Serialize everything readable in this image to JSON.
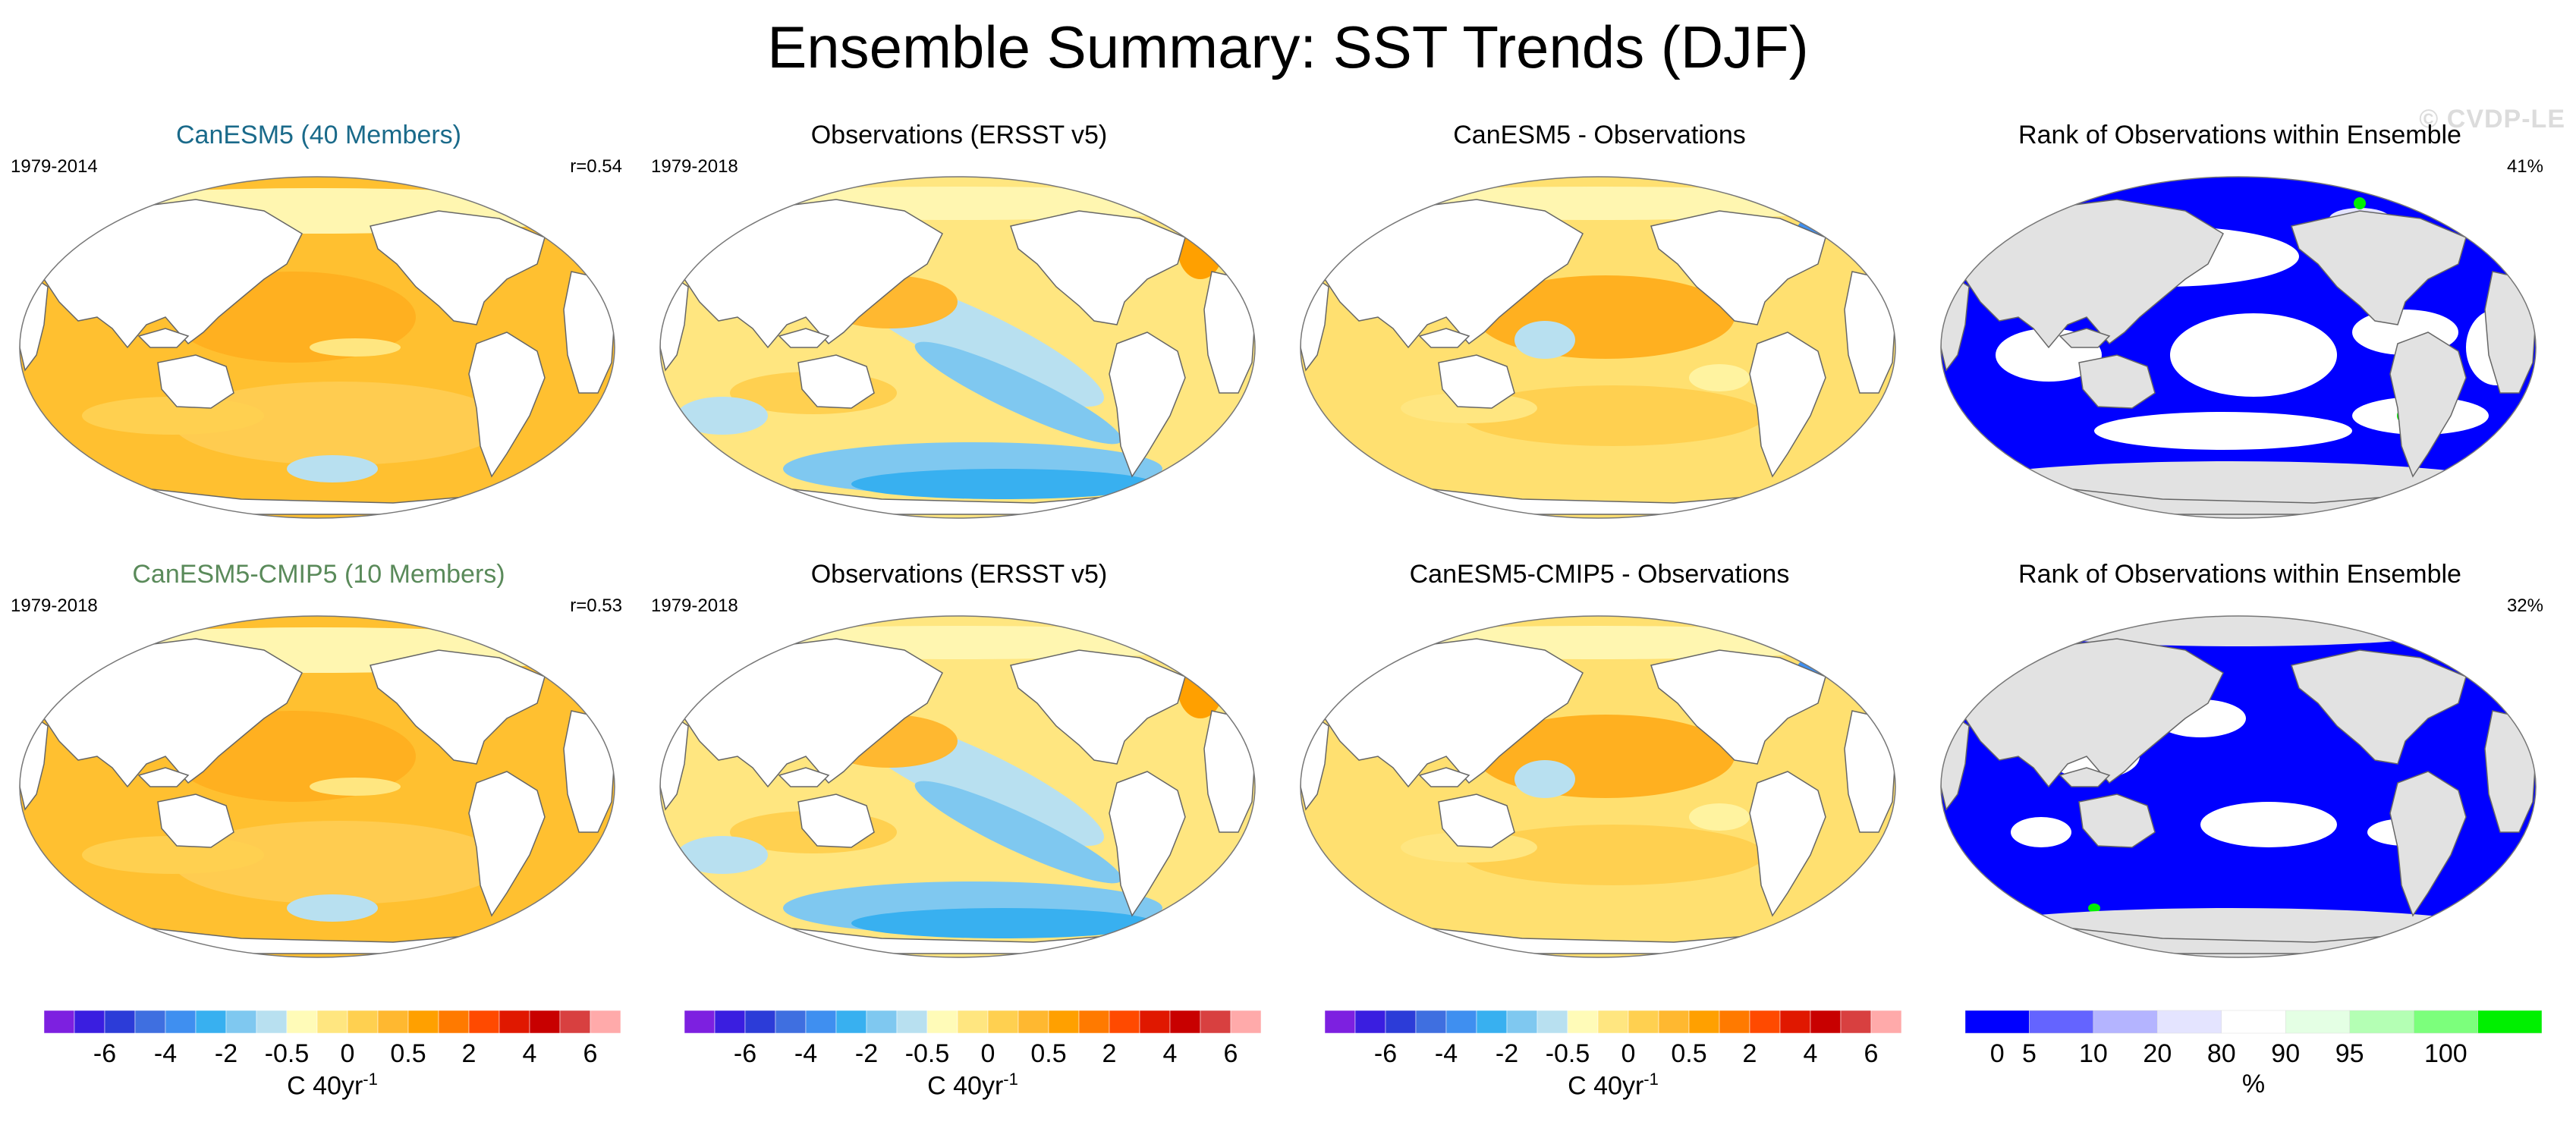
{
  "title": "Ensemble Summary: SST Trends (DJF)",
  "watermark": "© CVDP-LE",
  "colors": {
    "model_title": "#1a6a8a",
    "cmip5_title": "#5a8a5a",
    "land": "#ffffff",
    "rank_land": "#e2e2e2",
    "coast": "#666666"
  },
  "panels": [
    {
      "row": 0,
      "col": 0,
      "title": "CanESM5 (40 Members)",
      "title_color": "model",
      "left": "1979-2014",
      "right": "r=0.54",
      "kind": "model"
    },
    {
      "row": 0,
      "col": 1,
      "title": "Observations (ERSST v5)",
      "title_color": "black",
      "left": "1979-2018",
      "right": "",
      "kind": "obs"
    },
    {
      "row": 0,
      "col": 2,
      "title": "CanESM5 - Observations",
      "title_color": "black",
      "left": "",
      "right": "",
      "kind": "diff"
    },
    {
      "row": 0,
      "col": 3,
      "title": "Rank of Observations within Ensemble",
      "title_color": "black",
      "left": "",
      "right": "41%",
      "kind": "rank1"
    },
    {
      "row": 1,
      "col": 0,
      "title": "CanESM5-CMIP5 (10 Members)",
      "title_color": "cmip5",
      "left": "1979-2018",
      "right": "r=0.53",
      "kind": "model2"
    },
    {
      "row": 1,
      "col": 1,
      "title": "Observations (ERSST v5)",
      "title_color": "black",
      "left": "1979-2018",
      "right": "",
      "kind": "obs"
    },
    {
      "row": 1,
      "col": 2,
      "title": "CanESM5-CMIP5 - Observations",
      "title_color": "black",
      "left": "",
      "right": "",
      "kind": "diff2"
    },
    {
      "row": 1,
      "col": 3,
      "title": "Rank of Observations within Ensemble",
      "title_color": "black",
      "left": "",
      "right": "32%",
      "kind": "rank2"
    }
  ],
  "chart_data": {
    "type": "heatmap",
    "description_fields": "Global SST trend maps (Robinson projection) with shared colorbars",
    "trend_colorbar": {
      "unit_base": "C 40yr",
      "unit_exp": "-1",
      "colors": [
        "#7d20e0",
        "#3a1ee0",
        "#2c3cd8",
        "#3f6fe0",
        "#3f8ff0",
        "#38b0f0",
        "#7fc8f0",
        "#b8e0f0",
        "#fffbb8",
        "#ffe680",
        "#ffd050",
        "#ffb830",
        "#ffa000",
        "#ff7a00",
        "#ff4a00",
        "#e01800",
        "#c80000",
        "#d84040",
        "#ffaaaa"
      ],
      "tick_labels": [
        "-6",
        "-4",
        "-2",
        "-0.5",
        "0",
        "0.5",
        "2",
        "4",
        "6"
      ],
      "tick_boundaries": [
        2,
        4,
        6,
        8,
        10,
        12,
        14,
        16,
        18
      ]
    },
    "rank_colorbar": {
      "unit": "%",
      "colors": [
        "#0000ff",
        "#6464ff",
        "#b4b4ff",
        "#e4e4ff",
        "#ffffff",
        "#e4ffe4",
        "#b4ffb4",
        "#7cff7c",
        "#00f000"
      ],
      "tick_labels": [
        "0",
        "5",
        "10",
        "20",
        "80",
        "90",
        "95",
        "100"
      ],
      "tick_boundaries": [
        0.5,
        1,
        2,
        3,
        4,
        5,
        6,
        7.5
      ]
    },
    "dominant_values": {
      "model_trend_range": "0.5 to 2",
      "obs_trend_range": "-2 to 2",
      "rank1_percent": 41,
      "rank2_percent": 32
    }
  }
}
